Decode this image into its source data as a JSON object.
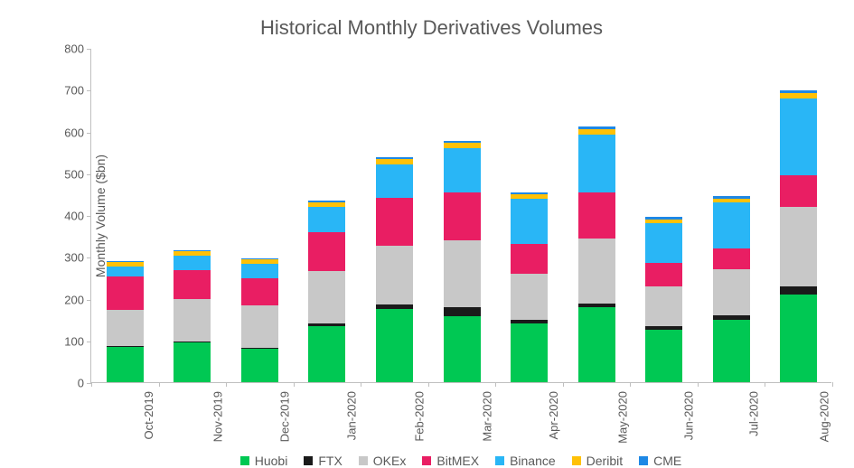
{
  "chart": {
    "type": "stacked-bar",
    "title": "Historical Monthly Derivatives Volumes",
    "title_fontsize": 22,
    "title_color": "#595959",
    "background_color": "#ffffff",
    "y_axis": {
      "label": "Monthly Volume ($bn)",
      "label_fontsize": 14,
      "min": 0,
      "max": 800,
      "tick_step": 100,
      "ticks": [
        0,
        100,
        200,
        300,
        400,
        500,
        600,
        700,
        800
      ],
      "tick_fontsize": 13,
      "tick_color": "#595959",
      "axis_color": "#bfbfbf"
    },
    "x_axis": {
      "tick_fontsize": 13,
      "tick_color": "#595959",
      "rotation_deg": -90,
      "axis_color": "#bfbfbf"
    },
    "bar_width_ratio": 0.55,
    "categories": [
      "Oct-2019",
      "Nov-2019",
      "Dec-2019",
      "Jan-2020",
      "Feb-2020",
      "Mar-2020",
      "Apr-2020",
      "May-2020",
      "Jun-2020",
      "Jul-2020",
      "Aug-2020"
    ],
    "series": [
      {
        "name": "Huobi",
        "color": "#00c853",
        "values": [
          85,
          95,
          80,
          135,
          175,
          158,
          140,
          180,
          125,
          150,
          210
        ]
      },
      {
        "name": "FTX",
        "color": "#1a1a1a",
        "values": [
          2,
          3,
          3,
          5,
          12,
          22,
          10,
          8,
          10,
          10,
          20
        ]
      },
      {
        "name": "OKEx",
        "color": "#c8c8c8",
        "values": [
          85,
          100,
          100,
          125,
          140,
          160,
          110,
          155,
          95,
          110,
          190
        ]
      },
      {
        "name": "BitMEX",
        "color": "#e91e63",
        "values": [
          80,
          70,
          65,
          95,
          115,
          115,
          70,
          110,
          55,
          50,
          75
        ]
      },
      {
        "name": "Binance",
        "color": "#29b6f6",
        "values": [
          25,
          35,
          35,
          60,
          80,
          105,
          110,
          140,
          95,
          110,
          185
        ]
      },
      {
        "name": "Deribit",
        "color": "#ffc107",
        "values": [
          10,
          10,
          10,
          10,
          12,
          12,
          10,
          12,
          10,
          10,
          12
        ]
      },
      {
        "name": "CME",
        "color": "#1e88e5",
        "values": [
          3,
          3,
          3,
          5,
          5,
          6,
          5,
          6,
          5,
          5,
          6
        ]
      }
    ],
    "legend": {
      "fontsize": 14,
      "swatch_size": 10
    }
  }
}
